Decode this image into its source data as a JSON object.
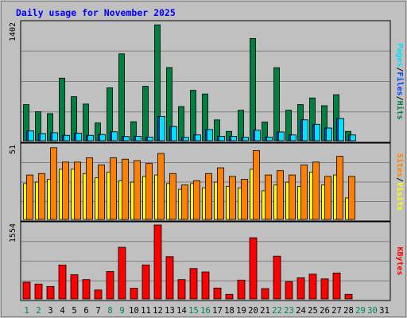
{
  "chart_data": {
    "type": "bar",
    "title": "Daily usage for November 2025",
    "days": [
      1,
      2,
      3,
      4,
      5,
      6,
      7,
      8,
      9,
      10,
      11,
      12,
      13,
      14,
      15,
      16,
      17,
      18,
      19,
      20,
      21,
      22,
      23,
      24,
      25,
      26,
      27,
      28,
      29,
      30,
      31
    ],
    "weekend_days": [
      1,
      2,
      8,
      9,
      15,
      16,
      22,
      23,
      29,
      30
    ],
    "hits_files_pages": {
      "ymax": 1402,
      "ymax_label": "1402",
      "series": [
        {
          "name": "Hits",
          "label": "Hits",
          "color": "#008040",
          "values": [
            433,
            347,
            325,
            751,
            528,
            440,
            213,
            635,
            1042,
            228,
            653,
            1390,
            878,
            410,
            605,
            561,
            250,
            112,
            366,
            1227,
            224,
            876,
            366,
            434,
            513,
            420,
            552,
            112,
            0,
            0,
            0
          ]
        },
        {
          "name": "Files",
          "label": "Files",
          "color": "#0040ff",
          "values": [
            117,
            85,
            96,
            64,
            90,
            64,
            74,
            107,
            50,
            53,
            43,
            292,
            170,
            40,
            69,
            134,
            53,
            53,
            40,
            126,
            43,
            105,
            69,
            250,
            197,
            152,
            266,
            69,
            0,
            0,
            0
          ]
        },
        {
          "name": "Pages",
          "label": "Pages",
          "color": "#00e0ff",
          "values": [
            117,
            85,
            96,
            64,
            90,
            64,
            74,
            107,
            50,
            53,
            43,
            292,
            170,
            40,
            69,
            134,
            53,
            53,
            40,
            126,
            43,
            105,
            69,
            250,
            197,
            152,
            266,
            69,
            0,
            0,
            0
          ]
        }
      ]
    },
    "visits_sites": {
      "ymax": 51,
      "ymax_label": "51",
      "series": [
        {
          "name": "Visits",
          "label": "Visits",
          "color": "#ffff00",
          "values": [
            25,
            26,
            28,
            35,
            35,
            32,
            29,
            33,
            27,
            26,
            30,
            31,
            25,
            21,
            25,
            22,
            26,
            23,
            22,
            35,
            20,
            24,
            26,
            23,
            33,
            24,
            31,
            15,
            0,
            0,
            0
          ]
        },
        {
          "name": "Sites",
          "label": "Sites",
          "color": "#ff8000",
          "values": [
            31,
            32,
            50,
            40,
            40,
            43,
            38,
            43,
            42,
            41,
            39,
            46,
            32,
            24,
            27,
            32,
            36,
            30,
            28,
            48,
            31,
            34,
            31,
            38,
            40,
            30,
            44,
            30,
            0,
            0,
            0
          ]
        }
      ]
    },
    "kbytes": {
      "ymax": 1554,
      "ymax_label": "1554",
      "series": [
        {
          "name": "KBytes",
          "label": "KBytes",
          "color": "#ff0000",
          "values": [
            352,
            313,
            262,
            713,
            508,
            406,
            188,
            576,
            1085,
            226,
            715,
            1554,
            889,
            406,
            639,
            567,
            229,
            96,
            396,
            1286,
            217,
            899,
            364,
            445,
            521,
            421,
            545,
            96,
            0,
            0,
            0
          ]
        }
      ]
    }
  }
}
